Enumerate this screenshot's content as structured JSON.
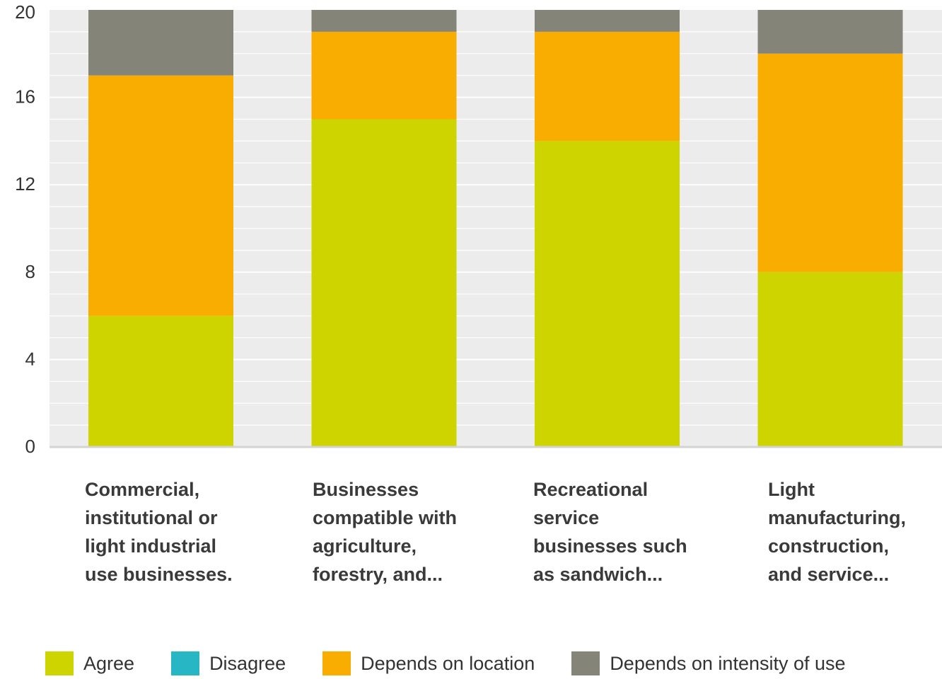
{
  "chart_data": {
    "type": "bar",
    "stacked": true,
    "categories": [
      [
        "Commercial,",
        "institutional or",
        "light industrial",
        "use businesses."
      ],
      [
        "Businesses",
        "compatible with",
        "agriculture,",
        "forestry, and..."
      ],
      [
        "Recreational",
        "service",
        "businesses such",
        "as sandwich..."
      ],
      [
        "Light",
        "manufacturing,",
        "construction,",
        "and service..."
      ]
    ],
    "series": [
      {
        "name": "Agree",
        "color": "#cdd400",
        "values": [
          6,
          15,
          14,
          8
        ]
      },
      {
        "name": "Disagree",
        "color": "#26b6c4",
        "values": [
          0,
          0,
          0,
          0
        ]
      },
      {
        "name": "Depends on location",
        "color": "#f9ad00",
        "values": [
          11,
          4,
          5,
          10
        ]
      },
      {
        "name": "Depends on intensity of use",
        "color": "#848478",
        "values": [
          3,
          1,
          1,
          2
        ]
      }
    ],
    "ylim": [
      0,
      20
    ],
    "yticks": [
      "0",
      "4",
      "8",
      "12",
      "16",
      "20"
    ],
    "grid": true,
    "legend_position": "bottom"
  }
}
